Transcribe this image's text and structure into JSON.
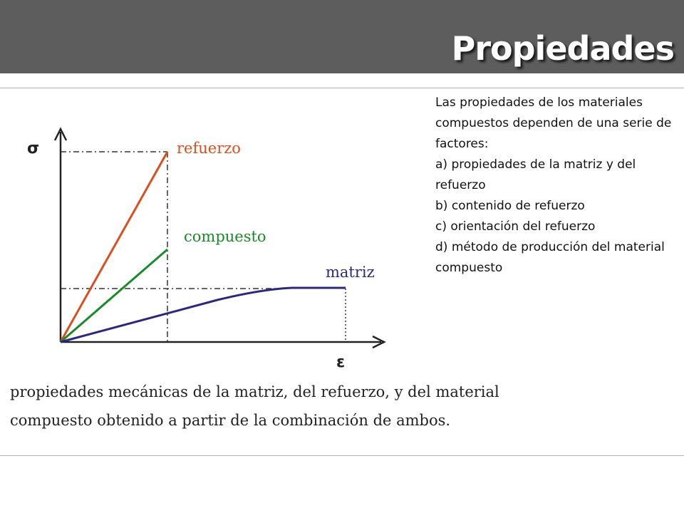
{
  "slide": {
    "title": "Propiedades"
  },
  "figure": {
    "y_axis_label": "σ",
    "x_axis_label": "ε",
    "curves": [
      {
        "name": "refuerzo",
        "color": "#d94f1e"
      },
      {
        "name": "compuesto",
        "color": "#1a8a2a"
      },
      {
        "name": "matriz",
        "color": "#2a2a7a"
      }
    ],
    "caption_lines": [
      "propiedades mecánicas de la matriz, del refuerzo, y del material",
      "compuesto obtenido a partir de la combinación de ambos."
    ]
  },
  "body_text": {
    "lines": [
      "Las propiedades de los materiales compuestos dependen de una serie de factores:",
      "a) propiedades de la matriz y del refuerzo",
      "b) contenido de refuerzo",
      "c) orientación del refuerzo",
      "d) método de producción del material compuesto"
    ]
  }
}
